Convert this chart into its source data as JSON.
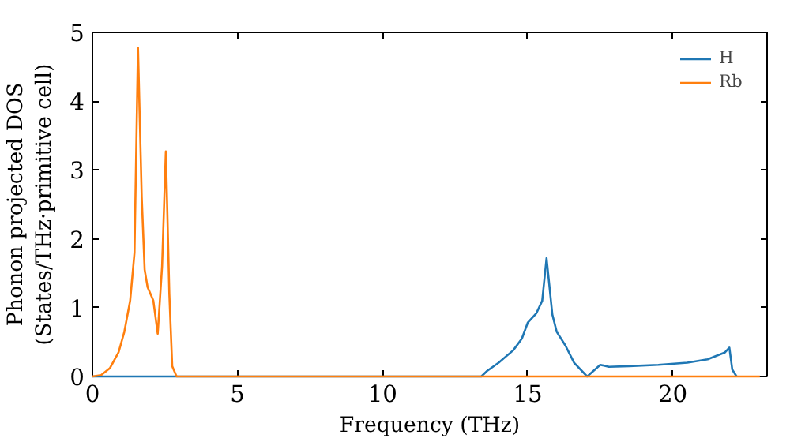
{
  "chart_data": {
    "type": "line",
    "xlabel": "Frequency (THz)",
    "ylabel": "Phonon projected DOS\n(States/THz·primitive cell)",
    "xlim": [
      0,
      23.25
    ],
    "ylim": [
      0,
      5
    ],
    "xticks": [
      0,
      5,
      10,
      15,
      20
    ],
    "yticks": [
      0,
      1,
      2,
      3,
      4,
      5
    ],
    "grid": false,
    "legend": "top right",
    "series": [
      {
        "name": "H",
        "color": "#1f77b4",
        "x": [
          0,
          13.4,
          13.6,
          14.0,
          14.5,
          14.8,
          15.0,
          15.3,
          15.5,
          15.65,
          15.85,
          16.0,
          16.3,
          16.6,
          17.05,
          17.5,
          17.8,
          18.5,
          19.5,
          20.5,
          21.2,
          21.8,
          21.95,
          22.05,
          22.2
        ],
        "values": [
          0,
          0,
          0.08,
          0.2,
          0.38,
          0.55,
          0.78,
          0.92,
          1.1,
          1.72,
          0.9,
          0.65,
          0.45,
          0.2,
          0,
          0.17,
          0.14,
          0.15,
          0.17,
          0.2,
          0.25,
          0.35,
          0.42,
          0.1,
          0
        ]
      },
      {
        "name": "Rb",
        "color": "#ff7f0e",
        "x": [
          0,
          0.3,
          0.6,
          0.9,
          1.1,
          1.3,
          1.45,
          1.57,
          1.7,
          1.8,
          1.9,
          2.0,
          2.1,
          2.25,
          2.4,
          2.53,
          2.65,
          2.75,
          2.9,
          23.0
        ],
        "values": [
          0,
          0.02,
          0.12,
          0.35,
          0.65,
          1.1,
          1.8,
          4.78,
          2.6,
          1.55,
          1.3,
          1.2,
          1.1,
          0.62,
          1.6,
          3.27,
          1.2,
          0.15,
          0,
          0
        ]
      }
    ]
  }
}
